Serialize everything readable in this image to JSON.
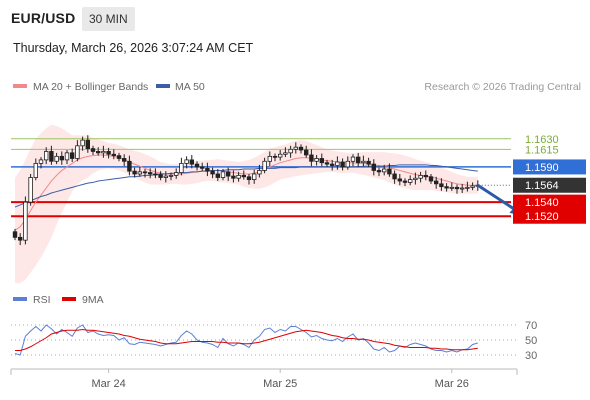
{
  "header": {
    "symbol": "EUR/USD",
    "timeframe": "30 MIN",
    "datetime": "Thursday, March 26, 2026 3:07:24 AM CET"
  },
  "chart_data": [
    {
      "type": "candlestick",
      "legend": [
        {
          "name": "MA 20 + Bollinger Bands",
          "color": "#f08a8a"
        },
        {
          "name": "MA 50",
          "color": "#3b5ea7"
        }
      ],
      "credit": "Research © 2026 Trading Central",
      "ylim": [
        1.5455,
        1.1668
      ],
      "x_ticks": [
        {
          "label": "Mar 24",
          "index": 18
        },
        {
          "label": "Mar 25",
          "index": 51
        },
        {
          "label": "Mar 26",
          "index": 84
        }
      ],
      "candle_count": 90,
      "levels": [
        {
          "value": 1.163,
          "label": "1.1630",
          "style": "target",
          "color": "#9ec562",
          "boxed": false
        },
        {
          "value": 1.1615,
          "label": "1.1615",
          "style": "target",
          "color": "#9ec562",
          "boxed": false
        },
        {
          "value": 1.159,
          "label": "1.1590",
          "style": "pivot",
          "color": "#2f6fd6",
          "boxed": true
        },
        {
          "value": 1.1564,
          "label": "1.1564",
          "style": "last",
          "color": "#333333",
          "boxed": true
        },
        {
          "value": 1.154,
          "label": "1.1540",
          "style": "support",
          "color": "#e00000",
          "boxed": true
        },
        {
          "value": 1.152,
          "label": "1.1520",
          "style": "support",
          "color": "#e00000",
          "boxed": true
        }
      ],
      "close": [
        1.149,
        1.1486,
        1.154,
        1.1575,
        1.1595,
        1.16,
        1.1612,
        1.1598,
        1.1605,
        1.16,
        1.161,
        1.1602,
        1.162,
        1.1628,
        1.1616,
        1.1612,
        1.161,
        1.1612,
        1.1608,
        1.1606,
        1.1602,
        1.1598,
        1.1584,
        1.158,
        1.1583,
        1.1582,
        1.158,
        1.1579,
        1.1575,
        1.1577,
        1.1578,
        1.1582,
        1.1595,
        1.16,
        1.1594,
        1.159,
        1.1588,
        1.1584,
        1.158,
        1.1575,
        1.1583,
        1.1577,
        1.1574,
        1.1578,
        1.1576,
        1.1572,
        1.158,
        1.1585,
        1.1598,
        1.1605,
        1.1604,
        1.1608,
        1.161,
        1.1615,
        1.1618,
        1.1614,
        1.1607,
        1.1598,
        1.1602,
        1.1596,
        1.1594,
        1.1592,
        1.1597,
        1.159,
        1.1598,
        1.1604,
        1.1596,
        1.1598,
        1.1594,
        1.1585,
        1.1583,
        1.1587,
        1.158,
        1.1573,
        1.157,
        1.1568,
        1.1572,
        1.1574,
        1.1578,
        1.1576,
        1.157,
        1.1566,
        1.1562,
        1.156,
        1.1561,
        1.1559,
        1.156,
        1.1561,
        1.1563,
        1.1564
      ],
      "ma20": [
        1.15,
        1.1505,
        1.1515,
        1.1528,
        1.154,
        1.155,
        1.156,
        1.157,
        1.1578,
        1.1585,
        1.159,
        1.1595,
        1.16,
        1.1603,
        1.1605,
        1.1606,
        1.1607,
        1.1607,
        1.1606,
        1.1605,
        1.1603,
        1.16,
        1.1597,
        1.1594,
        1.1591,
        1.1588,
        1.1585,
        1.1583,
        1.1581,
        1.158,
        1.158,
        1.158,
        1.158,
        1.1581,
        1.1582,
        1.1583,
        1.1584,
        1.1585,
        1.1585,
        1.1585,
        1.1584,
        1.1583,
        1.1582,
        1.1581,
        1.158,
        1.158,
        1.1581,
        1.1583,
        1.1586,
        1.159,
        1.1593,
        1.1596,
        1.1598,
        1.16,
        1.1602,
        1.1603,
        1.1603,
        1.1602,
        1.1601,
        1.16,
        1.1599,
        1.1598,
        1.1597,
        1.1596,
        1.1596,
        1.1596,
        1.1595,
        1.1595,
        1.1594,
        1.1593,
        1.1592,
        1.1591,
        1.1589,
        1.1587,
        1.1585,
        1.1583,
        1.1581,
        1.1579,
        1.1578,
        1.1577,
        1.1576,
        1.1574,
        1.1572,
        1.157,
        1.1568,
        1.1566,
        1.1565,
        1.1564,
        1.1564,
        1.1564
      ],
      "ma50": [
        1.1533,
        1.1536,
        1.1539,
        1.1542,
        1.1545,
        1.1548,
        1.155,
        1.1553,
        1.1555,
        1.1557,
        1.1559,
        1.1561,
        1.1563,
        1.1565,
        1.1567,
        1.1568,
        1.157,
        1.1571,
        1.1572,
        1.1573,
        1.1574,
        1.1575,
        1.1576,
        1.1576,
        1.1577,
        1.1578,
        1.1578,
        1.1579,
        1.158,
        1.158,
        1.1581,
        1.1581,
        1.1582,
        1.1582,
        1.1583,
        1.1583,
        1.1584,
        1.1584,
        1.1585,
        1.1585,
        1.1585,
        1.1586,
        1.1586,
        1.1586,
        1.1587,
        1.1587,
        1.1587,
        1.1588,
        1.1588,
        1.1588,
        1.1588,
        1.1589,
        1.1589,
        1.1589,
        1.1589,
        1.159,
        1.159,
        1.159,
        1.159,
        1.159,
        1.159,
        1.159,
        1.159,
        1.159,
        1.159,
        1.159,
        1.159,
        1.1591,
        1.1591,
        1.1591,
        1.1591,
        1.1591,
        1.1592,
        1.1592,
        1.1593,
        1.1593,
        1.1593,
        1.1593,
        1.1593,
        1.1593,
        1.1592,
        1.1592,
        1.1591,
        1.159,
        1.1589,
        1.1588,
        1.1587,
        1.1586,
        1.1585,
        1.1584
      ],
      "bb_width": [
        0.0075,
        0.008,
        0.0085,
        0.0088,
        0.009,
        0.0088,
        0.0085,
        0.008,
        0.007,
        0.006,
        0.005,
        0.004,
        0.0035,
        0.0032,
        0.003,
        0.0025,
        0.0022,
        0.002,
        0.0018,
        0.0018,
        0.0018,
        0.0018,
        0.0018,
        0.0019,
        0.002,
        0.002,
        0.002,
        0.0018,
        0.0016,
        0.0015,
        0.0014,
        0.0014,
        0.0015,
        0.0016,
        0.0016,
        0.0016,
        0.0015,
        0.0015,
        0.0015,
        0.0016,
        0.0016,
        0.0016,
        0.0016,
        0.0016,
        0.0018,
        0.002,
        0.0022,
        0.0024,
        0.0025,
        0.0026,
        0.0025,
        0.0024,
        0.0024,
        0.0025,
        0.0025,
        0.0025,
        0.0024,
        0.0022,
        0.002,
        0.0018,
        0.0016,
        0.0015,
        0.0015,
        0.0015,
        0.0014,
        0.0014,
        0.0015,
        0.0016,
        0.0017,
        0.0018,
        0.0019,
        0.002,
        0.0021,
        0.0022,
        0.0023,
        0.0023,
        0.0023,
        0.0022,
        0.0021,
        0.002,
        0.0019,
        0.0018,
        0.0017,
        0.0016,
        0.0015,
        0.0014,
        0.0013,
        0.0012,
        0.0012,
        0.0012
      ],
      "forecast_arrow": {
        "from_index": 89,
        "from_value": 1.1564,
        "to_index": 97,
        "to_value": 1.1522
      }
    },
    {
      "type": "line",
      "legend": [
        {
          "name": "RSI",
          "color": "#5b7fd6"
        },
        {
          "name": "9MA",
          "color": "#e00000"
        }
      ],
      "y_ticks": [
        70,
        50,
        30
      ],
      "ylim": [
        18,
        82
      ],
      "series": [
        {
          "name": "RSI",
          "color": "#5b7fd6",
          "values": [
            32,
            30,
            55,
            62,
            68,
            62,
            70,
            65,
            58,
            64,
            60,
            55,
            66,
            70,
            60,
            62,
            58,
            56,
            57,
            56,
            50,
            53,
            45,
            44,
            47,
            46,
            45,
            44,
            42,
            44,
            46,
            47,
            56,
            62,
            58,
            50,
            47,
            46,
            44,
            40,
            52,
            45,
            42,
            46,
            44,
            40,
            50,
            55,
            64,
            66,
            60,
            64,
            62,
            68,
            68,
            64,
            60,
            54,
            56,
            52,
            50,
            49,
            52,
            48,
            54,
            58,
            50,
            52,
            46,
            38,
            36,
            40,
            34,
            36,
            42,
            40,
            44,
            46,
            44,
            42,
            38,
            36,
            36,
            34,
            36,
            34,
            37,
            38,
            44,
            46
          ]
        },
        {
          "name": "9MA",
          "color": "#e00000",
          "values": [
            36,
            36,
            38,
            41,
            45,
            49,
            53,
            58,
            60,
            62,
            63,
            63,
            63,
            64,
            63,
            63,
            62,
            61,
            60,
            59,
            58,
            56,
            55,
            53,
            51,
            50,
            49,
            48,
            46,
            45,
            45,
            45,
            46,
            47,
            48,
            48,
            48,
            48,
            48,
            47,
            47,
            46,
            46,
            46,
            45,
            45,
            46,
            47,
            49,
            51,
            53,
            55,
            57,
            59,
            61,
            62,
            63,
            62,
            61,
            60,
            58,
            56,
            55,
            53,
            52,
            52,
            51,
            51,
            50,
            48,
            47,
            46,
            45,
            43,
            42,
            41,
            40,
            40,
            40,
            40,
            39,
            39,
            38,
            38,
            37,
            37,
            37,
            37,
            38,
            39
          ]
        }
      ]
    }
  ]
}
